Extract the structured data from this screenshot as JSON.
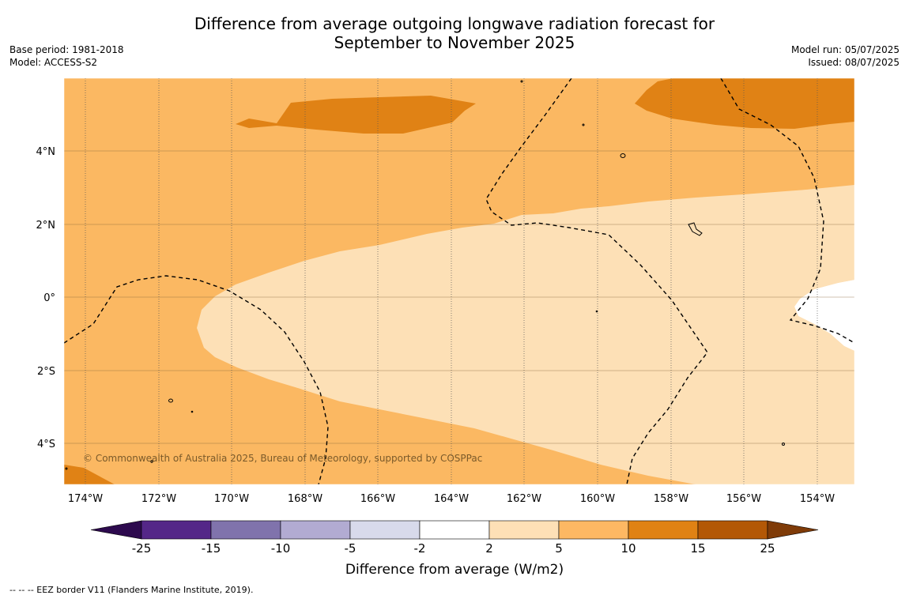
{
  "title_line1": "Difference from average outgoing longwave radiation forecast for",
  "title_line2": "September to November 2025",
  "meta_left": {
    "base_period": "Base period: 1981-2018",
    "model": "Model: ACCESS-S2"
  },
  "meta_right": {
    "model_run": "Model run: 05/07/2025",
    "issued": "Issued: 08/07/2025"
  },
  "map": {
    "copyright": "© Commonwealth of Australia 2025, Bureau of Meteorology, supported by COSPPac",
    "lon_labels": [
      "174°W",
      "172°W",
      "170°W",
      "168°W",
      "166°W",
      "164°W",
      "162°W",
      "160°W",
      "158°W",
      "156°W",
      "154°W"
    ],
    "lat_labels": [
      "4°N",
      "2°N",
      "0°",
      "2°S",
      "4°S"
    ],
    "extent": {
      "lon_min": -174.6,
      "lon_max": -153.0,
      "lat_min": -5.2,
      "lat_max": 5.9
    },
    "colors": {
      "band_2_5": "#fde0b6",
      "band_5_10": "#fbb862",
      "band_10_15": "#e08215",
      "band_neutral": "#ffffff"
    }
  },
  "colorbar": {
    "label": "Difference from average (W/m2)",
    "ticks": [
      "-25",
      "-15",
      "-10",
      "-5",
      "-2",
      "2",
      "5",
      "10",
      "15",
      "25"
    ],
    "colors": [
      "#2d0a4e",
      "#542788",
      "#8073ac",
      "#b2abd2",
      "#d8daeb",
      "#ffffff",
      "#fee0b6",
      "#fdb863",
      "#e08214",
      "#b35806",
      "#7f3b08"
    ]
  },
  "footnote": "--  --  -- EEZ border V11 (Flanders Marine Institute, 2019)."
}
